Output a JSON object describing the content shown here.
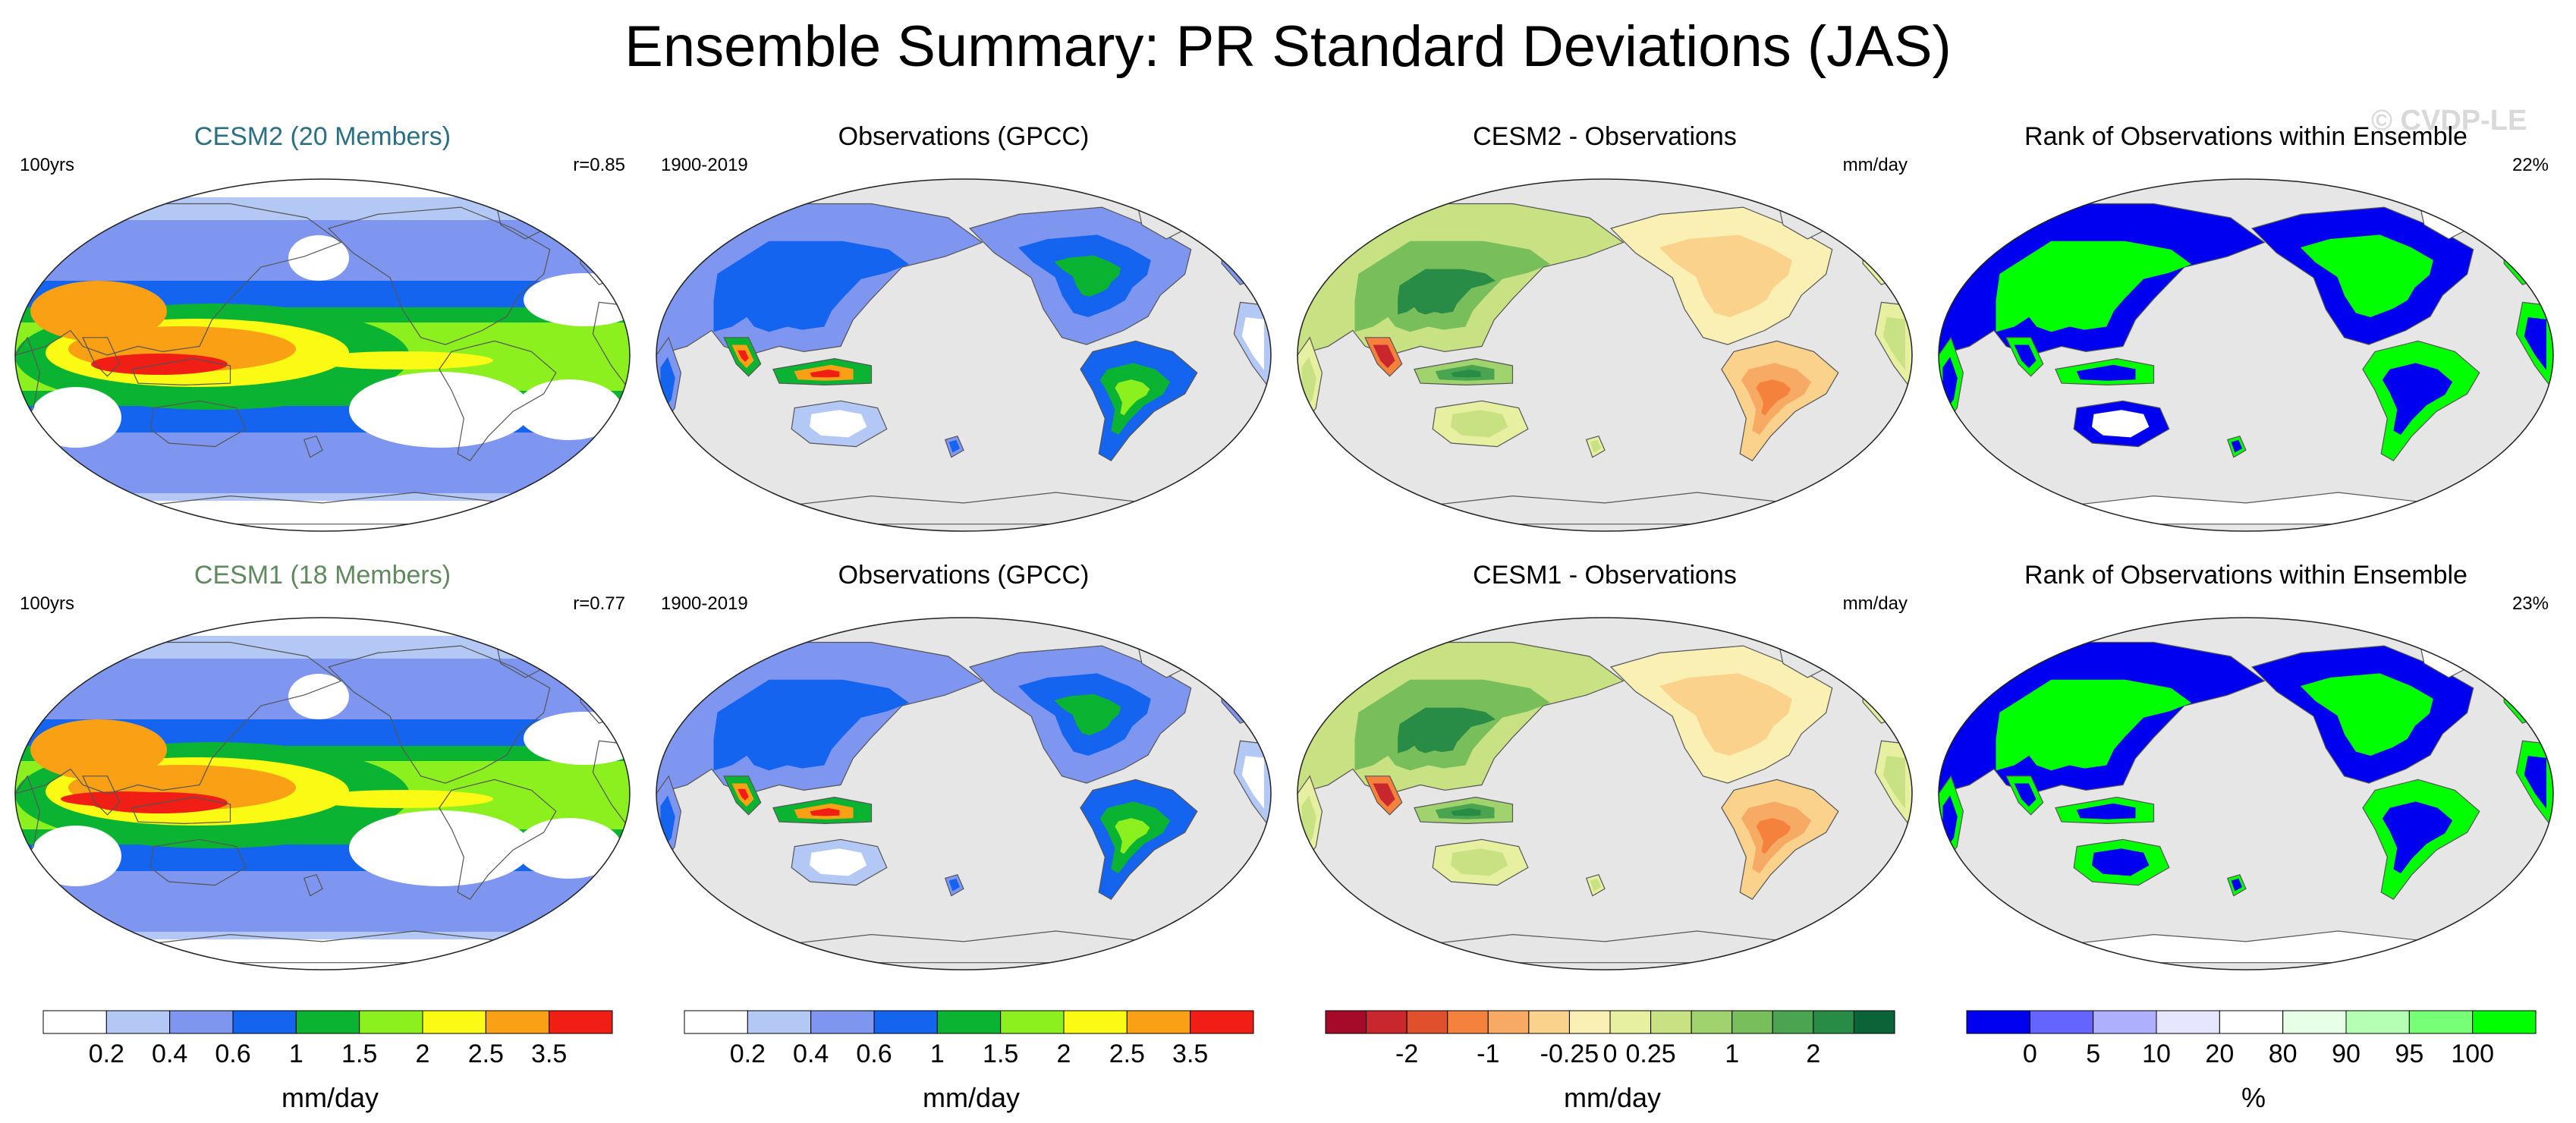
{
  "title": "Ensemble Summary: PR Standard Deviations (JAS)",
  "watermark": "© CVDP-LE",
  "panels": [
    {
      "title": "CESM2 (20 Members)",
      "title_color": "#2b6f85",
      "left": "100yrs",
      "right": "r=0.85",
      "map": "model",
      "variant": 1
    },
    {
      "title": "Observations (GPCC)",
      "title_color": "#000000",
      "left": "1900-2019",
      "right": "",
      "map": "obs",
      "variant": 1
    },
    {
      "title": "CESM2 - Observations",
      "title_color": "#000000",
      "left": "",
      "right": "mm/day",
      "map": "diff",
      "variant": 1
    },
    {
      "title": "Rank of Observations within Ensemble",
      "title_color": "#000000",
      "left": "",
      "right": "22%",
      "map": "rank",
      "variant": 1
    },
    {
      "title": "CESM1 (18 Members)",
      "title_color": "#5f8a5f",
      "left": "100yrs",
      "right": "r=0.77",
      "map": "model",
      "variant": 2
    },
    {
      "title": "Observations (GPCC)",
      "title_color": "#000000",
      "left": "1900-2019",
      "right": "",
      "map": "obs",
      "variant": 2
    },
    {
      "title": "CESM1 - Observations",
      "title_color": "#000000",
      "left": "",
      "right": "mm/day",
      "map": "diff",
      "variant": 2
    },
    {
      "title": "Rank of Observations within Ensemble",
      "title_color": "#000000",
      "left": "",
      "right": "23%",
      "map": "rank",
      "variant": 2
    }
  ],
  "colorbars": [
    {
      "name": "stddev-colorbar-1",
      "unit": "mm/day",
      "colors": [
        "#ffffff",
        "#b4c8f5",
        "#7f96f0",
        "#1464f0",
        "#0ab432",
        "#8cf01e",
        "#fafa14",
        "#faa014",
        "#f01e14"
      ],
      "labels": [
        "0.2",
        "0.4",
        "0.6",
        "1",
        "1.5",
        "2",
        "2.5",
        "3.5"
      ]
    },
    {
      "name": "stddev-colorbar-2",
      "unit": "mm/day",
      "colors": [
        "#ffffff",
        "#b4c8f5",
        "#7f96f0",
        "#1464f0",
        "#0ab432",
        "#8cf01e",
        "#fafa14",
        "#faa014",
        "#f01e14"
      ],
      "labels": [
        "0.2",
        "0.4",
        "0.6",
        "1",
        "1.5",
        "2",
        "2.5",
        "3.5"
      ]
    },
    {
      "name": "difference-colorbar",
      "unit": "mm/day",
      "colors": [
        "#a50a28",
        "#c8282d",
        "#e1502d",
        "#f5823c",
        "#f7aa64",
        "#fad28c",
        "#faf0b4",
        "#e6f0a0",
        "#c8e182",
        "#a0d26e",
        "#78be5a",
        "#4ba550",
        "#288c46",
        "#0a6437"
      ],
      "labels": [
        "-2",
        "-1",
        "-0.25",
        "0",
        "0.25",
        "1",
        "2"
      ],
      "label_boundaries": [
        2,
        4,
        6,
        7,
        8,
        10,
        12
      ]
    },
    {
      "name": "rank-colorbar",
      "unit": "%",
      "colors": [
        "#0000f0",
        "#6464ff",
        "#afafff",
        "#e6e6ff",
        "#ffffff",
        "#e6ffe6",
        "#b4ffb4",
        "#78ff78",
        "#00ff00"
      ],
      "labels": [
        "0",
        "5",
        "10",
        "20",
        "80",
        "90",
        "95",
        "100"
      ]
    }
  ],
  "chart_data": [
    {
      "type": "heatmap",
      "title": "CESM2 (20 Members)",
      "subtitle_left": "100yrs",
      "subtitle_right": "r=0.85",
      "units": "mm/day",
      "levels": [
        0.2,
        0.4,
        0.6,
        1,
        1.5,
        2,
        2.5,
        3.5
      ]
    },
    {
      "type": "heatmap",
      "title": "Observations (GPCC)",
      "subtitle_left": "1900-2019",
      "units": "mm/day",
      "levels": [
        0.2,
        0.4,
        0.6,
        1,
        1.5,
        2,
        2.5,
        3.5
      ]
    },
    {
      "type": "heatmap",
      "title": "CESM2 - Observations",
      "units": "mm/day",
      "levels": [
        -2,
        -1,
        -0.25,
        0,
        0.25,
        1,
        2
      ]
    },
    {
      "type": "heatmap",
      "title": "Rank of Observations within Ensemble",
      "subtitle_right": "22%",
      "units": "%",
      "levels": [
        0,
        5,
        10,
        20,
        80,
        90,
        95,
        100
      ]
    },
    {
      "type": "heatmap",
      "title": "CESM1 (18 Members)",
      "subtitle_left": "100yrs",
      "subtitle_right": "r=0.77",
      "units": "mm/day",
      "levels": [
        0.2,
        0.4,
        0.6,
        1,
        1.5,
        2,
        2.5,
        3.5
      ]
    },
    {
      "type": "heatmap",
      "title": "Observations (GPCC)",
      "subtitle_left": "1900-2019",
      "units": "mm/day",
      "levels": [
        0.2,
        0.4,
        0.6,
        1,
        1.5,
        2,
        2.5,
        3.5
      ]
    },
    {
      "type": "heatmap",
      "title": "CESM1 - Observations",
      "units": "mm/day",
      "levels": [
        -2,
        -1,
        -0.25,
        0,
        0.25,
        1,
        2
      ]
    },
    {
      "type": "heatmap",
      "title": "Rank of Observations within Ensemble",
      "subtitle_right": "23%",
      "units": "%",
      "levels": [
        0,
        5,
        10,
        20,
        80,
        90,
        95,
        100
      ]
    }
  ]
}
